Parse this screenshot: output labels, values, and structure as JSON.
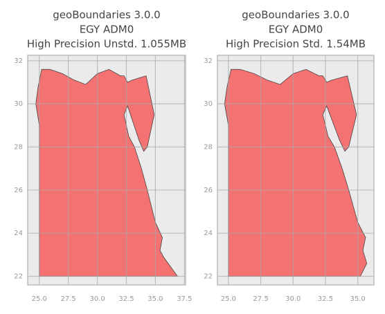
{
  "chart_data": [
    {
      "type": "map",
      "title": [
        "geoBoundaries 3.0.0",
        "EGY ADM0",
        "High Precision Unstd. 1.055MB"
      ],
      "x": [
        25.0,
        25.0,
        24.7,
        24.9,
        25.2,
        25.9,
        27.0,
        28.0,
        29.0,
        30.0,
        31.0,
        32.0,
        32.3,
        32.6,
        33.0,
        34.2,
        34.9,
        34.3,
        34.0,
        33.6,
        32.6,
        32.3,
        32.7,
        33.2,
        33.8,
        34.3,
        35.0,
        35.6,
        35.4,
        35.7,
        36.9,
        31.4,
        25.0
      ],
      "y": [
        22.0,
        29.0,
        30.0,
        30.8,
        31.6,
        31.6,
        31.4,
        31.1,
        30.9,
        31.4,
        31.6,
        31.3,
        31.3,
        31.0,
        31.1,
        31.3,
        29.5,
        28.0,
        27.8,
        28.3,
        29.9,
        29.5,
        28.5,
        28.0,
        27.0,
        26.0,
        24.5,
        23.8,
        23.2,
        22.9,
        22.0,
        22.0,
        22.0
      ],
      "color": "#f46b6b",
      "xlim": [
        24.0,
        37.6
      ],
      "ylim": [
        21.6,
        32.25
      ],
      "xticks": [
        {
          "value": 25,
          "label": "25.0"
        },
        {
          "value": 27.5,
          "label": "27.5"
        },
        {
          "value": 30,
          "label": "30.0"
        },
        {
          "value": 32.5,
          "label": "32.5"
        },
        {
          "value": 35,
          "label": "35.0"
        },
        {
          "value": 37.5,
          "label": "37.5"
        }
      ],
      "yticks": [
        22,
        24,
        26,
        28,
        30,
        32
      ],
      "grid": true
    },
    {
      "type": "map",
      "title": [
        "geoBoundaries 3.0.0",
        "EGY ADM0",
        "High Precision Std. 1.54MB"
      ],
      "x": [
        25.0,
        25.0,
        24.7,
        24.9,
        25.2,
        25.9,
        27.0,
        28.0,
        29.0,
        30.0,
        31.0,
        32.0,
        32.3,
        32.6,
        33.0,
        34.2,
        34.9,
        34.3,
        34.0,
        33.6,
        32.6,
        32.3,
        32.7,
        33.2,
        33.8,
        34.3,
        35.0,
        35.6,
        35.4,
        35.7,
        35.2,
        31.4,
        25.0
      ],
      "y": [
        22.0,
        29.0,
        30.0,
        30.8,
        31.6,
        31.6,
        31.4,
        31.1,
        30.9,
        31.4,
        31.6,
        31.3,
        31.3,
        31.0,
        31.1,
        31.3,
        29.5,
        28.0,
        27.8,
        28.3,
        29.9,
        29.5,
        28.5,
        28.0,
        27.0,
        26.0,
        24.5,
        23.8,
        23.2,
        22.6,
        22.0,
        22.0,
        22.0
      ],
      "color": "#f46b6b",
      "xlim": [
        24.15,
        36.25
      ],
      "ylim": [
        21.6,
        32.25
      ],
      "xticks": [
        {
          "value": 25,
          "label": "25.0"
        },
        {
          "value": 27.5,
          "label": "27.5"
        },
        {
          "value": 30,
          "label": "30.0"
        },
        {
          "value": 32.5,
          "label": "32.5"
        },
        {
          "value": 35,
          "label": "35.0"
        }
      ],
      "yticks": [
        22,
        24,
        26,
        28,
        30,
        32
      ],
      "grid": true
    }
  ]
}
